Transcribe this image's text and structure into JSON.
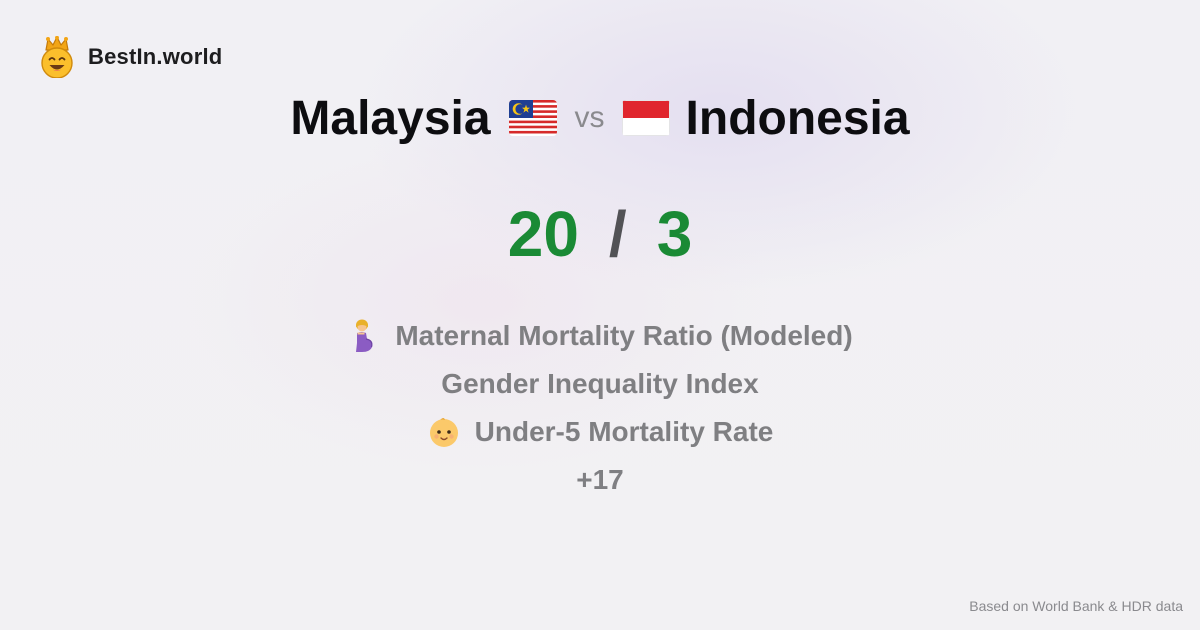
{
  "brand": {
    "name": "BestIn.world",
    "icon": "crowned-smiley-icon"
  },
  "comparison": {
    "left_country": "Malaysia",
    "left_flag": "malaysia-flag-icon",
    "separator": "vs",
    "right_country": "Indonesia",
    "right_flag": "indonesia-flag-icon"
  },
  "score": {
    "left": "20",
    "separator": "/",
    "right": "3",
    "color": "#1a8a35"
  },
  "metrics": [
    {
      "label": "Maternal Mortality Ratio (Modeled)",
      "icon": "pregnant-woman-icon"
    },
    {
      "label": "Gender Inequality Index",
      "icon": ""
    },
    {
      "label": "Under-5 Mortality Rate",
      "icon": "baby-icon"
    }
  ],
  "more_count": "+17",
  "source": "Based on World Bank & HDR data"
}
